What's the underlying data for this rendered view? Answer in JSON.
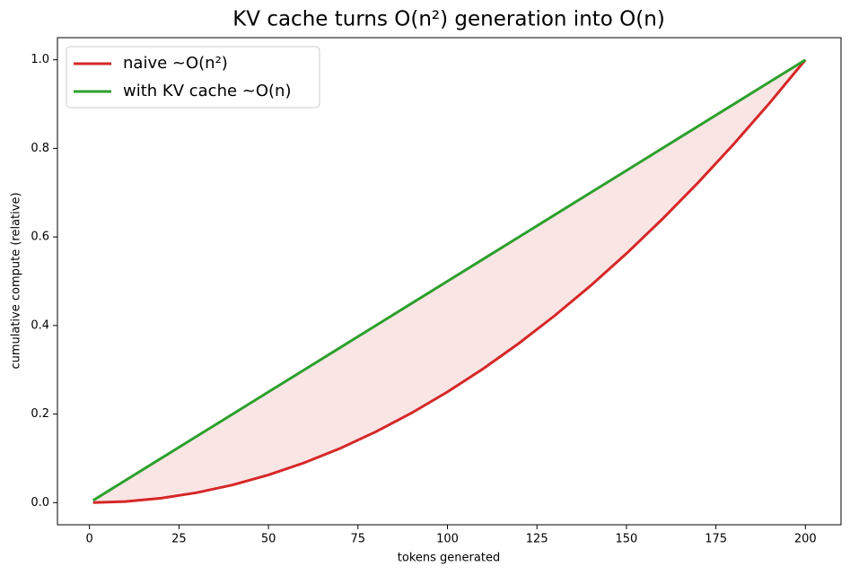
{
  "chart_data": {
    "type": "line",
    "title": "KV cache turns O(n²) generation into O(n)",
    "x_label": "tokens generated",
    "y_label": "cumulative compute (relative)",
    "x": [
      1,
      10,
      20,
      30,
      40,
      50,
      60,
      70,
      80,
      90,
      100,
      110,
      120,
      130,
      140,
      150,
      160,
      170,
      180,
      190,
      200
    ],
    "series": [
      {
        "name": "naive  ~O(n²)",
        "color": "#d62728",
        "values": [
          2.5e-05,
          0.0025,
          0.01,
          0.0225,
          0.04,
          0.0625,
          0.09,
          0.1225,
          0.16,
          0.2025,
          0.25,
          0.3025,
          0.36,
          0.4225,
          0.49,
          0.5625,
          0.64,
          0.7225,
          0.81,
          0.9025,
          1
        ]
      },
      {
        "name": "with KV cache  ~O(n)",
        "color": "#2ca02c",
        "values": [
          0.005,
          0.05,
          0.1,
          0.15,
          0.2,
          0.25,
          0.3,
          0.35,
          0.4,
          0.45,
          0.5,
          0.55,
          0.6,
          0.65,
          0.7,
          0.75,
          0.8,
          0.85,
          0.9,
          0.95,
          1
        ]
      }
    ],
    "fill_between": {
      "color": "#d62728",
      "opacity": 0.12
    },
    "xlim": [
      -8.95,
      209.95
    ],
    "ylim": [
      -0.05,
      1.05
    ],
    "xticks": [
      0,
      25,
      50,
      75,
      100,
      125,
      150,
      175,
      200
    ],
    "yticks": [
      {
        "value": 0,
        "label": "0.0"
      },
      0.2,
      0.4,
      0.6,
      0.8,
      {
        "value": 1,
        "label": "1.0"
      }
    ],
    "legend": "upper left"
  }
}
